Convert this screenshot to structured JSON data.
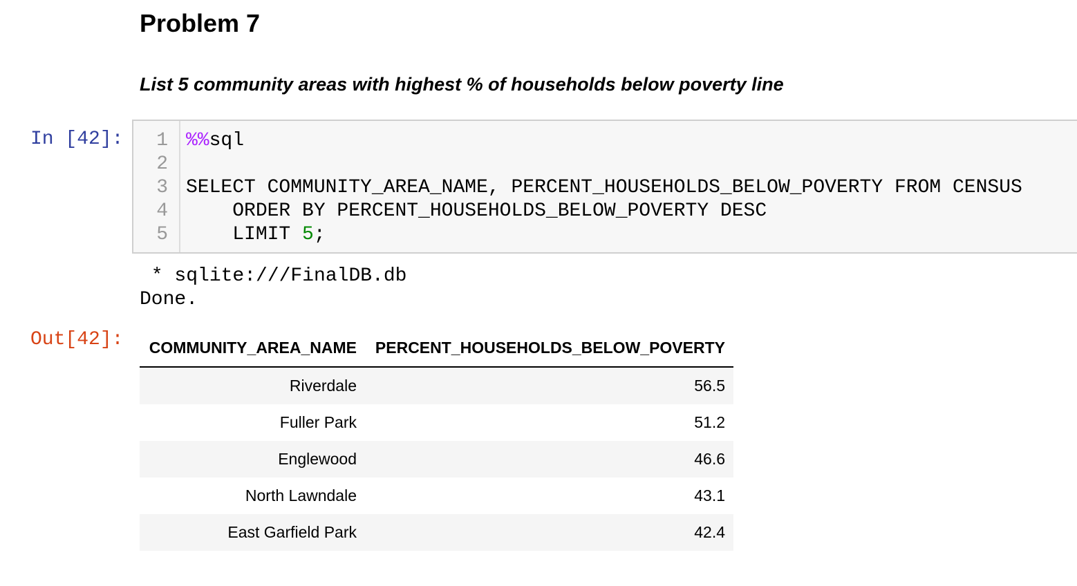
{
  "markdown": {
    "heading": "Problem 7",
    "subtitle": "List 5 community areas with highest % of households below poverty line"
  },
  "input_cell": {
    "prompt": "In [42]:",
    "line_numbers": [
      "1",
      "2",
      "3",
      "4",
      "5"
    ],
    "code": {
      "line1_magic": "%%",
      "line1_rest": "sql",
      "line2": "",
      "line3": "SELECT COMMUNITY_AREA_NAME, PERCENT_HOUSEHOLDS_BELOW_POVERTY FROM CENSUS",
      "line4": "    ORDER BY PERCENT_HOUSEHOLDS_BELOW_POVERTY DESC",
      "line5_prefix": "    LIMIT ",
      "line5_number": "5",
      "line5_suffix": ";"
    }
  },
  "stdout": {
    "line1": " * sqlite:///FinalDB.db",
    "line2": "Done."
  },
  "output_cell": {
    "prompt": "Out[42]:",
    "columns": [
      "COMMUNITY_AREA_NAME",
      "PERCENT_HOUSEHOLDS_BELOW_POVERTY"
    ],
    "rows": [
      [
        "Riverdale",
        "56.5"
      ],
      [
        "Fuller Park",
        "51.2"
      ],
      [
        "Englewood",
        "46.6"
      ],
      [
        "North Lawndale",
        "43.1"
      ],
      [
        "East Garfield Park",
        "42.4"
      ]
    ]
  },
  "colors": {
    "in_prompt": "#303f9f",
    "out_prompt": "#d84315",
    "magic": "#aa22ff",
    "number": "#008800"
  }
}
